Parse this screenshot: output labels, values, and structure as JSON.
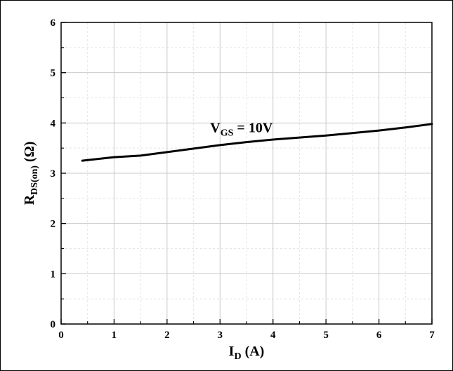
{
  "chart_data": {
    "type": "line",
    "xlabel": {
      "main": "I",
      "sub": "D",
      "tail": " (A)"
    },
    "ylabel": {
      "main": "R",
      "sub": "DS(on)",
      "tail": " (Ω)"
    },
    "xlim": [
      0,
      7
    ],
    "ylim": [
      0,
      6
    ],
    "xticks": [
      "0",
      "1",
      "2",
      "3",
      "4",
      "5",
      "6",
      "7"
    ],
    "yticks": [
      "0",
      "1",
      "2",
      "3",
      "4",
      "5",
      "6"
    ],
    "grid": true,
    "annotation": {
      "main": "V",
      "sub": "GS",
      "tail": " = 10V",
      "x": 3.0,
      "y": 3.9
    },
    "series": [
      {
        "x": [
          0.4,
          1.0,
          1.5,
          2.0,
          2.5,
          3.0,
          3.5,
          4.0,
          4.5,
          5.0,
          5.5,
          6.0,
          6.5,
          7.0
        ],
        "y": [
          3.25,
          3.32,
          3.35,
          3.42,
          3.49,
          3.56,
          3.62,
          3.67,
          3.71,
          3.75,
          3.8,
          3.85,
          3.91,
          3.98
        ]
      }
    ],
    "colors": {
      "line": "#000000",
      "grid": "#c8c8c8",
      "minor_grid": "#e4e4e4"
    }
  }
}
